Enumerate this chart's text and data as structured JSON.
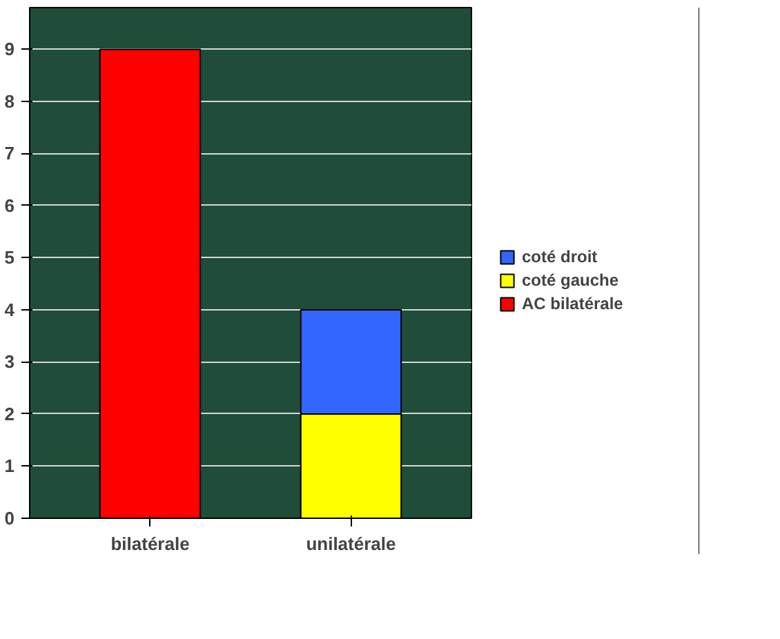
{
  "chart_data": {
    "type": "bar",
    "stacked": true,
    "categories": [
      "bilatérale",
      "unilatérale"
    ],
    "series": [
      {
        "name": "AC bilatérale",
        "color": "#ff0000",
        "values": [
          9,
          null
        ]
      },
      {
        "name": "coté gauche",
        "color": "#ffff00",
        "values": [
          null,
          2
        ]
      },
      {
        "name": "coté droit",
        "color": "#3366ff",
        "values": [
          null,
          2
        ]
      }
    ],
    "ylim": [
      0,
      9.8
    ],
    "yticks": [
      0,
      1,
      2,
      3,
      4,
      5,
      6,
      7,
      8,
      9
    ],
    "grid": "y",
    "legend": "right"
  }
}
